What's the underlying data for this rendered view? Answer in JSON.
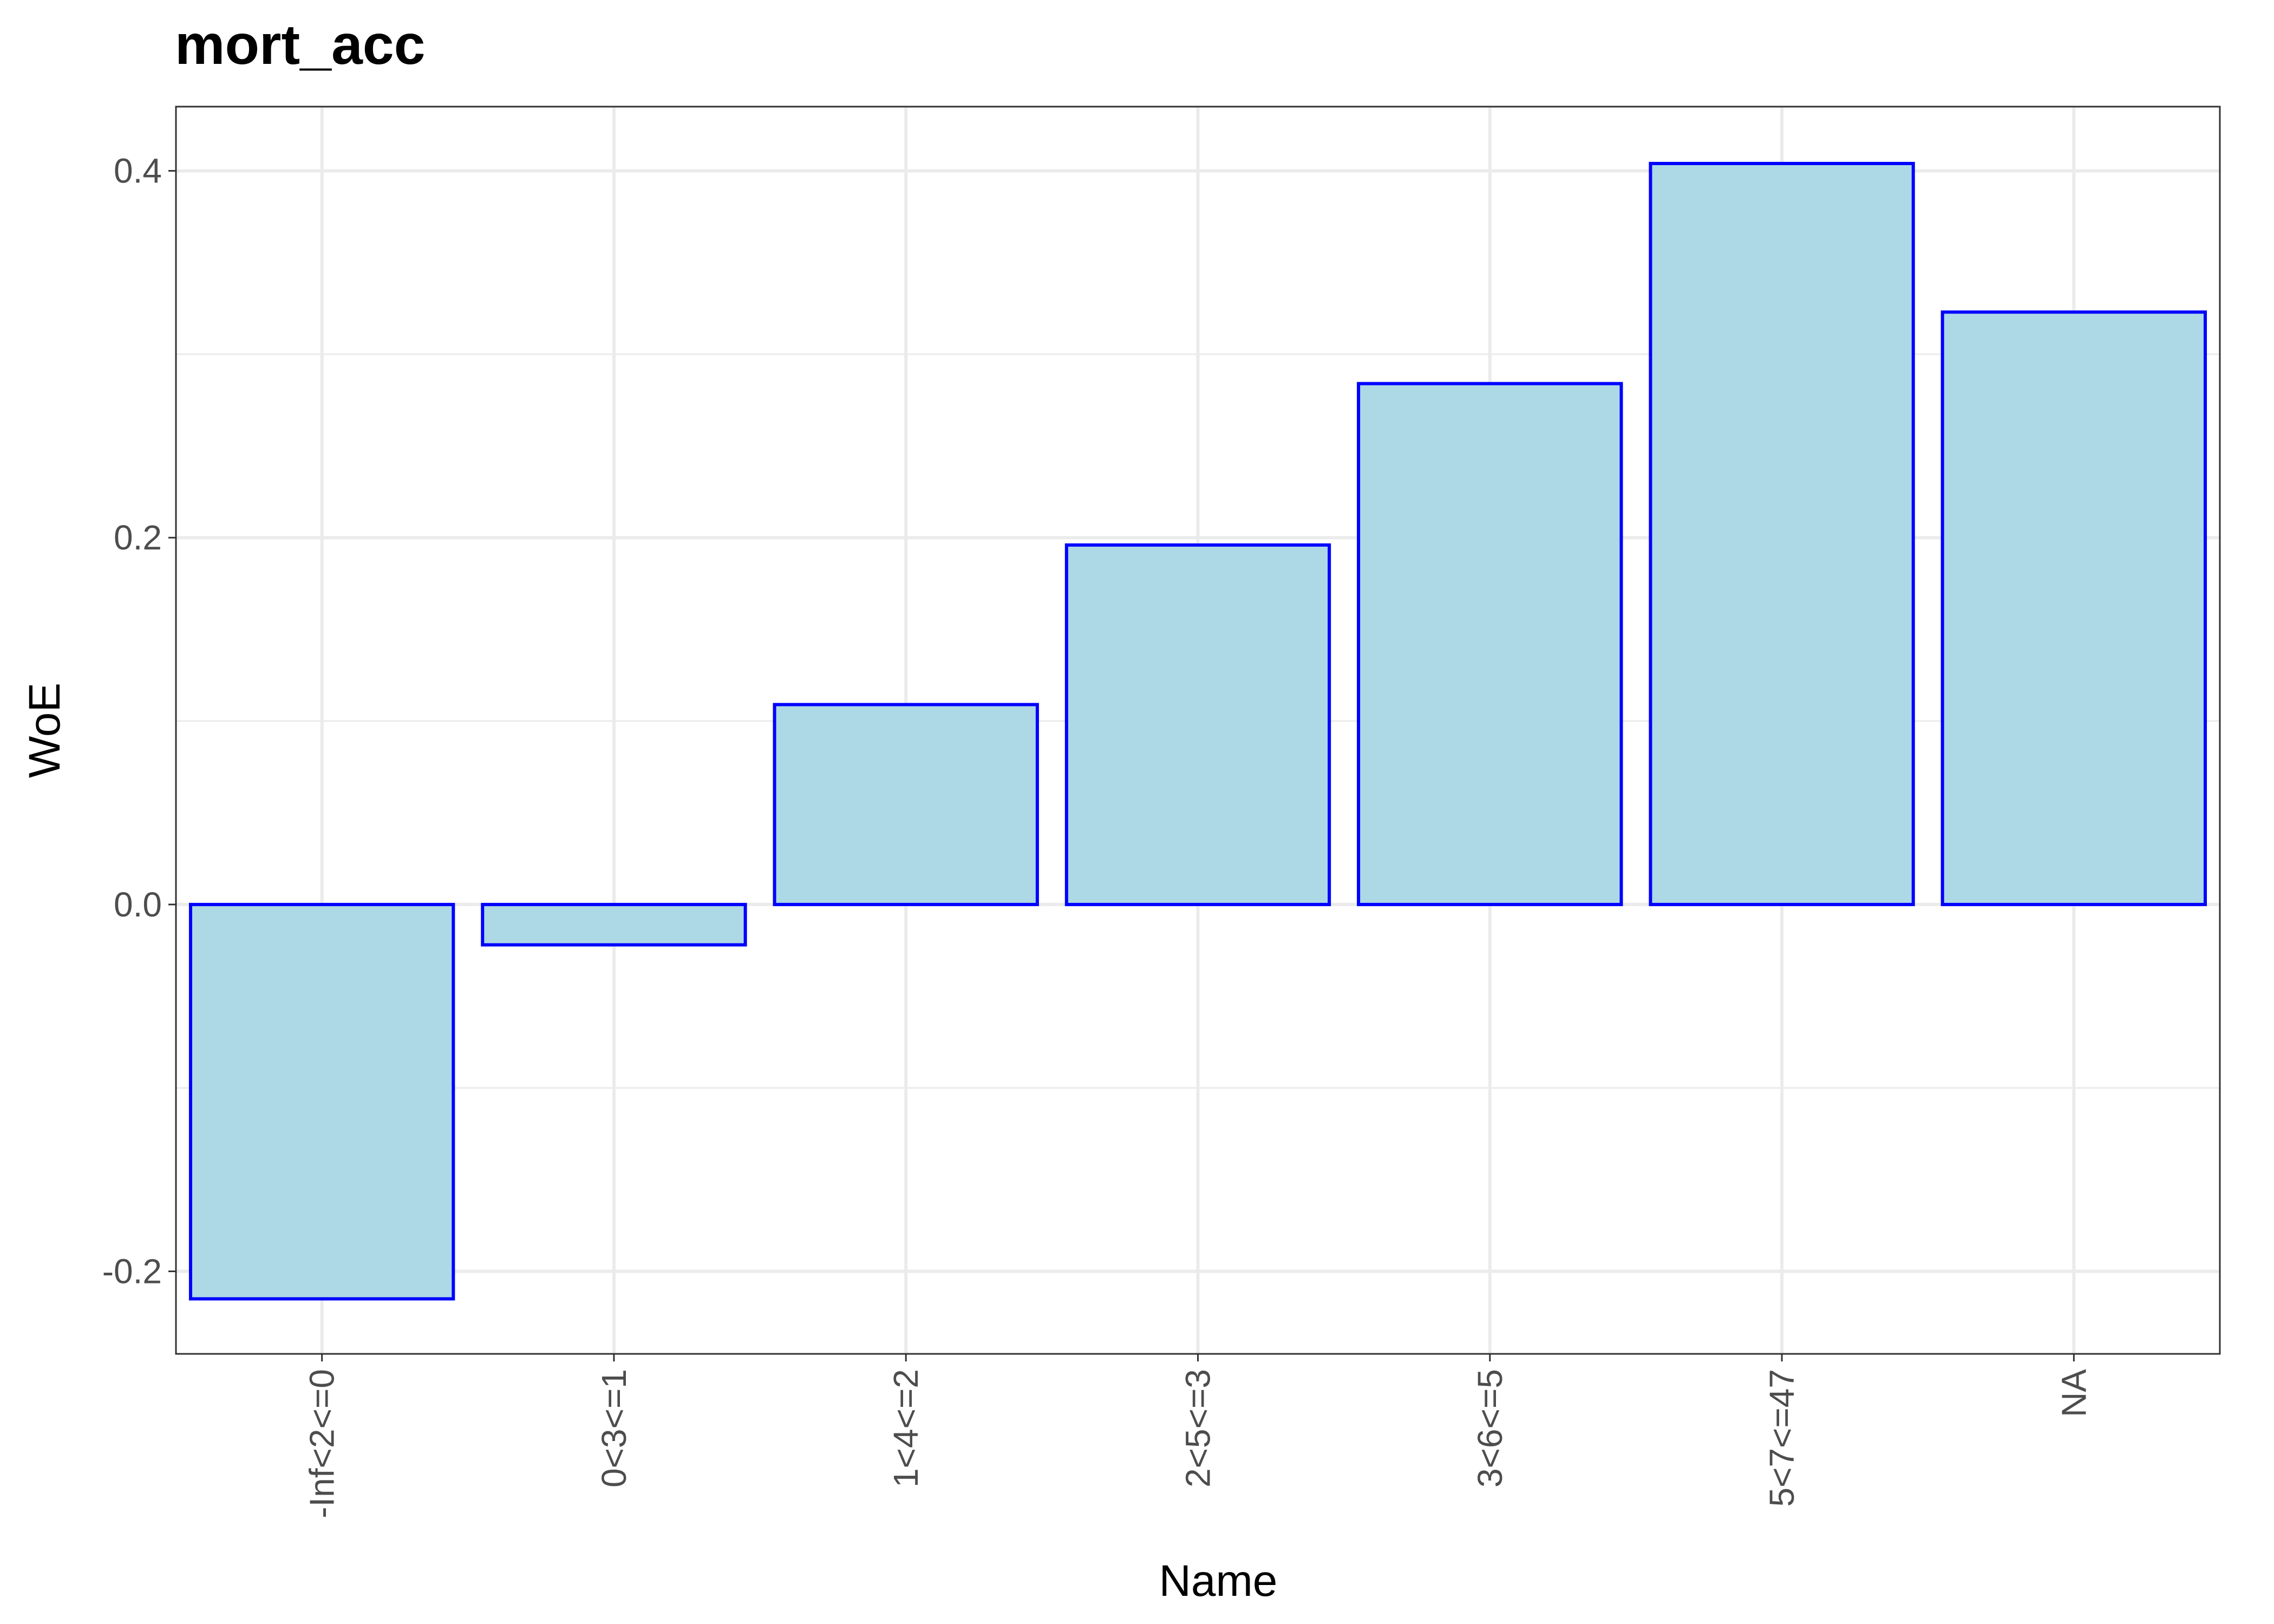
{
  "chart_data": {
    "type": "bar",
    "title": "mort_acc",
    "xlabel": "Name",
    "ylabel": "WoE",
    "categories": [
      "-Inf<2<=0",
      "0<3<=1",
      "1<4<=2",
      "2<5<=3",
      "3<6<=5",
      "5<7<=47",
      "NA"
    ],
    "values": [
      -0.215,
      -0.022,
      0.109,
      0.196,
      0.284,
      0.404,
      0.323
    ],
    "ylim": [
      -0.245,
      0.435
    ],
    "yticks": [
      -0.2,
      0.0,
      0.2,
      0.4
    ],
    "ytick_labels": [
      "-0.2",
      "0.0",
      "0.2",
      "0.4"
    ],
    "grid": true,
    "bar_fill": "#add8e6",
    "bar_stroke": "#0000ff",
    "grid_color": "#ebebeb",
    "panel_border_color": "#333333",
    "tick_label_color": "#4d4d4d"
  }
}
